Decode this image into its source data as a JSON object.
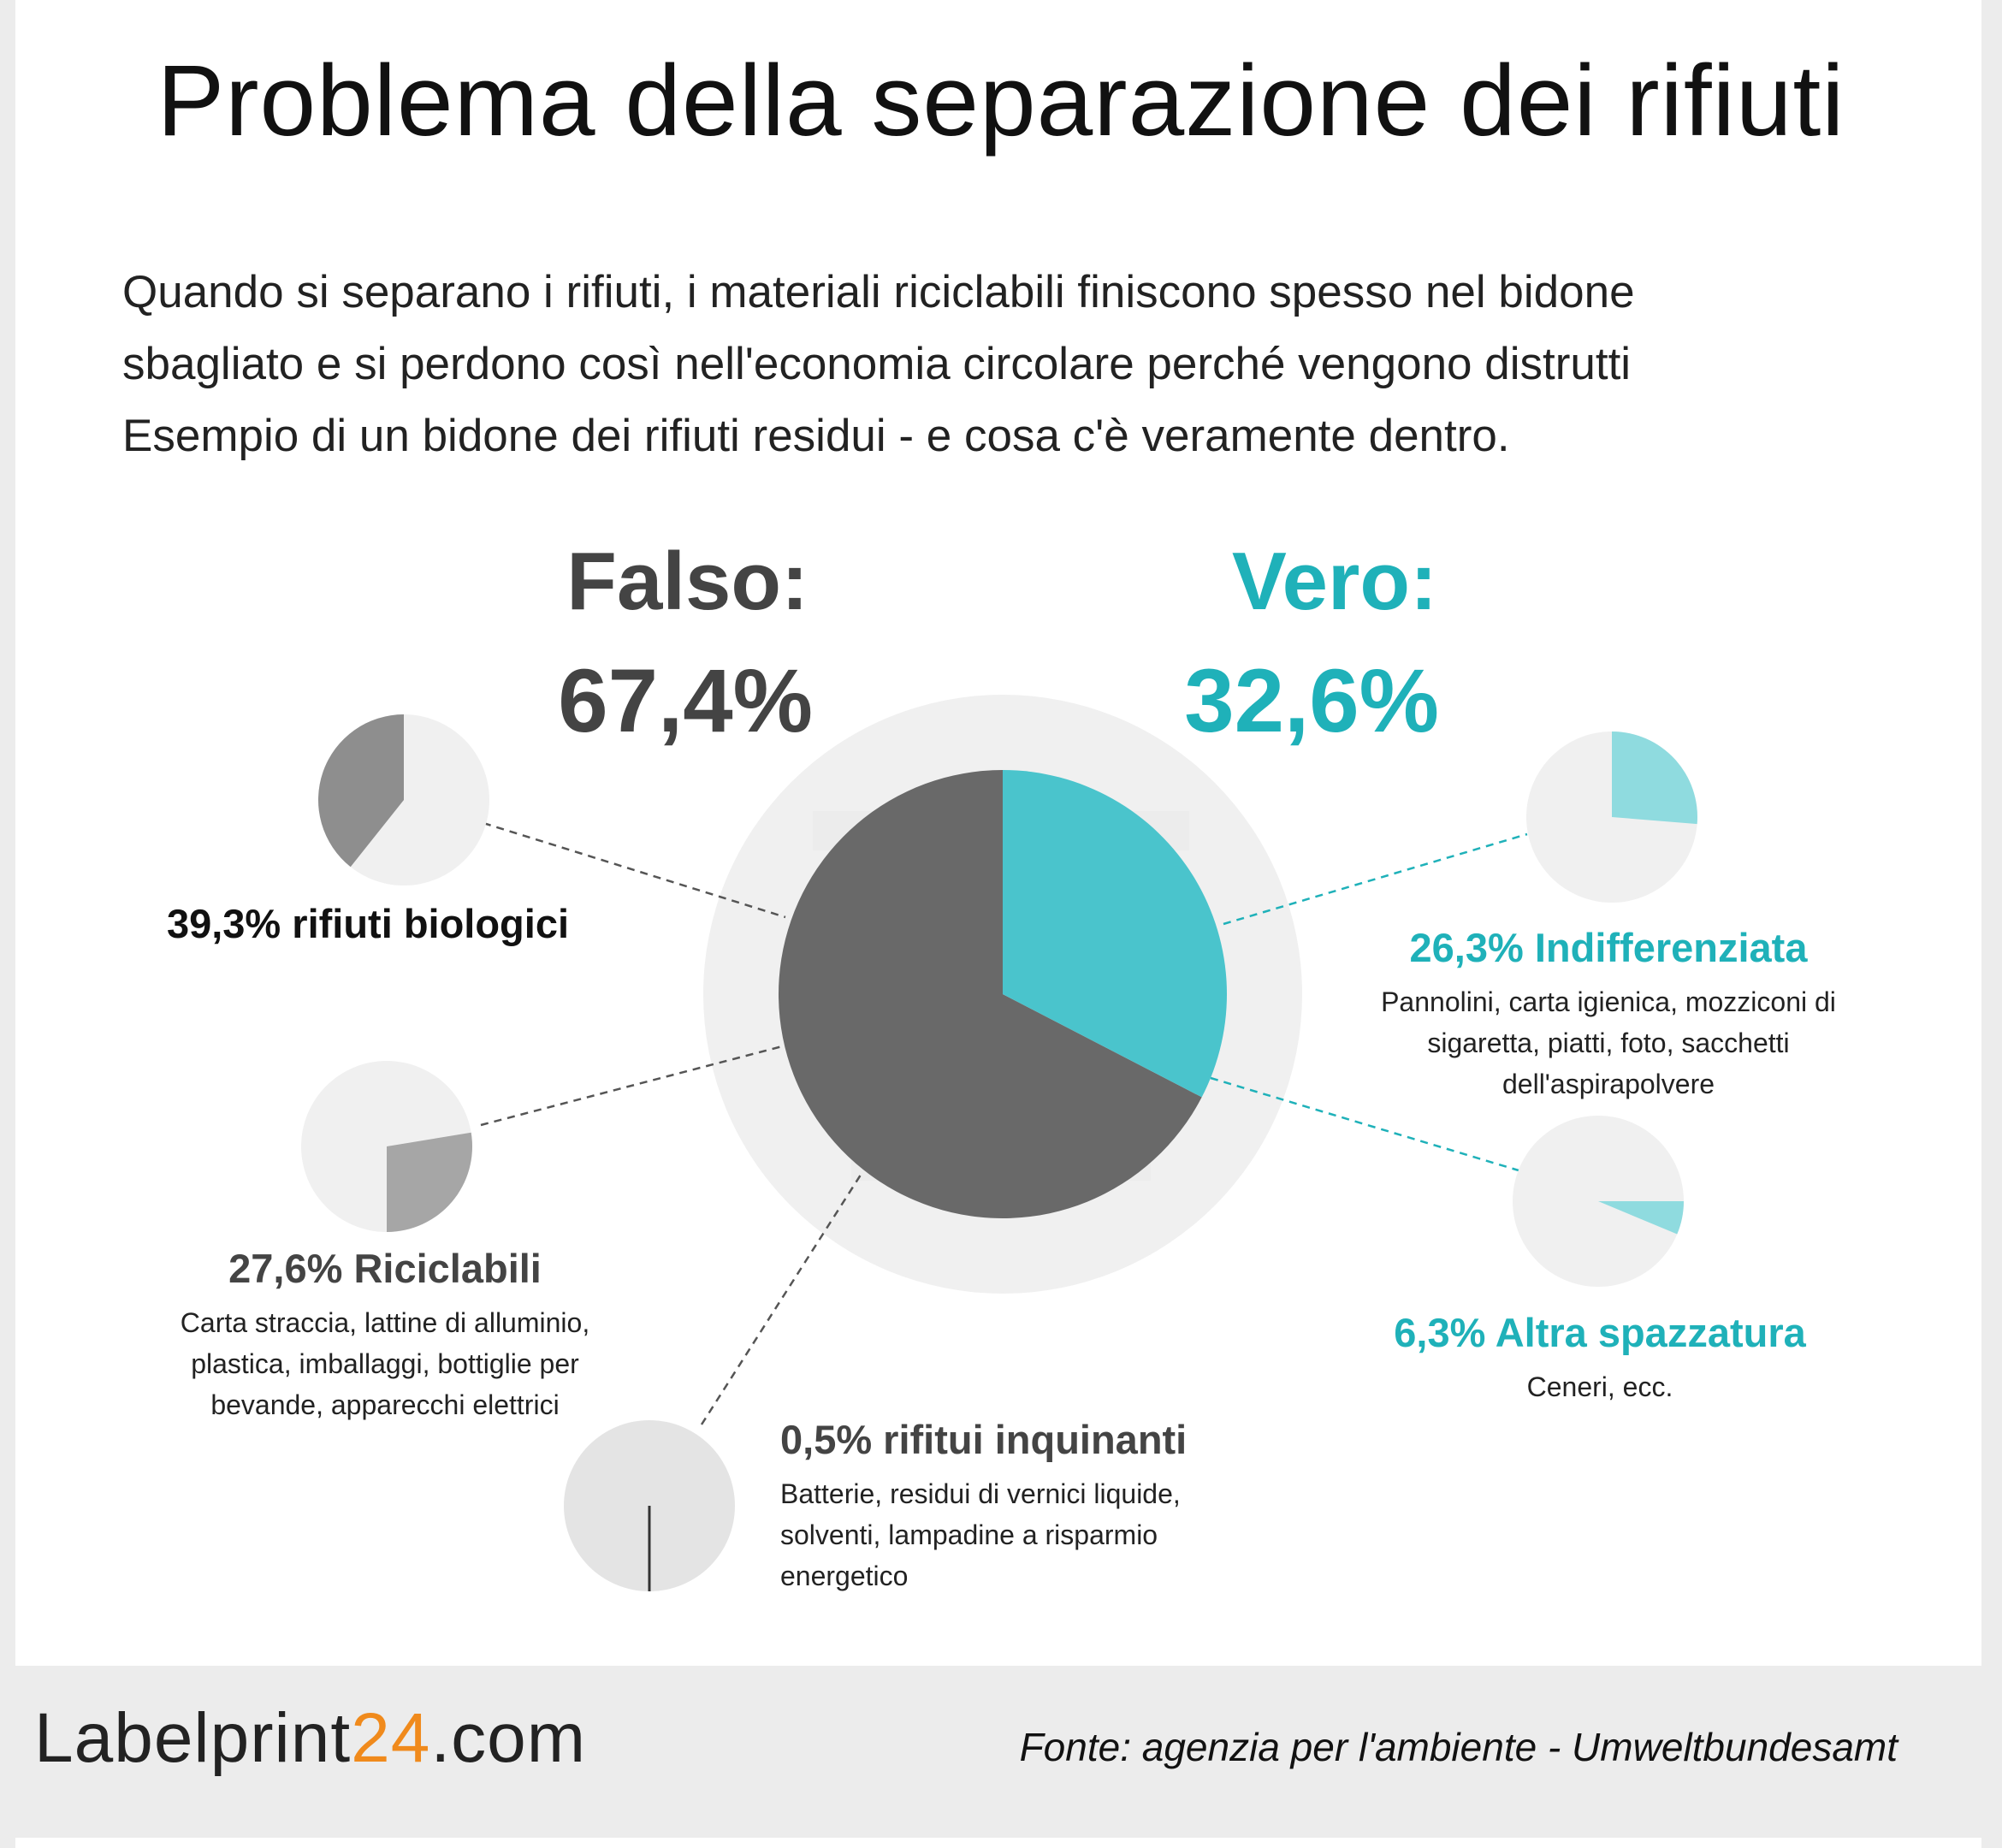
{
  "title": "Problema della separazione dei rifiuti",
  "intro": [
    "Quando si separano i rifiuti, i materiali riciclabili finiscono spesso nel bidone",
    "sbagliato e si perdono così nell'economia circolare perché vengono distrutti",
    "Esempio di un bidone dei rifiuti residui - e cosa c'è veramente dentro."
  ],
  "colors": {
    "dark": "#444444",
    "main_gray": "#696969",
    "teal": "#1fb1b9",
    "teal_main": "#4ac4cc",
    "teal_light": "#8fdbdf",
    "light": "#f0f0f0",
    "light2": "#e4e4e4"
  },
  "false_label": "Falso:",
  "false_value": "67,4%",
  "true_label": "Vero:",
  "true_value": "32,6%",
  "categories": [
    {
      "title": "39,3% rifiuti biologici",
      "desc": ""
    },
    {
      "title": "27,6% Riciclabili",
      "desc": "Carta straccia, lattine di alluminio, plastica, imballaggi, bottiglie per bevande, apparecchi elettrici"
    },
    {
      "title": "0,5% rifitui inquinanti",
      "desc": "Batterie, residui di vernici liquide, solventi, lampadine a risparmio energetico"
    },
    {
      "title": "26,3% Indifferenziata",
      "desc": "Pannolini, carta igienica, mozziconi di sigaretta, piatti, foto, sacchetti dell'aspirapolvere"
    },
    {
      "title": "6,3% Altra spazzatura",
      "desc": "Ceneri, ecc."
    }
  ],
  "chart_data": [
    {
      "type": "pie",
      "name": "main",
      "labels": [
        "Vero",
        "Falso"
      ],
      "values": [
        32.6,
        67.4
      ]
    },
    {
      "type": "pie",
      "labels": [
        "rifiuti biologici",
        "resto"
      ],
      "values": [
        39.3,
        60.7
      ]
    },
    {
      "type": "pie",
      "labels": [
        "Riciclabili",
        "resto"
      ],
      "values": [
        27.6,
        72.4
      ]
    },
    {
      "type": "pie",
      "labels": [
        "rifitui inquinanti",
        "resto"
      ],
      "values": [
        0.5,
        99.5
      ]
    },
    {
      "type": "pie",
      "labels": [
        "Indifferenziata",
        "resto"
      ],
      "values": [
        26.3,
        73.7
      ]
    },
    {
      "type": "pie",
      "labels": [
        "Altra spazzatura",
        "resto"
      ],
      "values": [
        6.3,
        93.7
      ]
    }
  ],
  "footer": {
    "logo_part1": "Label",
    "logo_part2": "print",
    "logo_part3": "24",
    "logo_part4": ".com",
    "source": "Fonte: agenzia per l'ambiente - Umweltbundesamt"
  }
}
